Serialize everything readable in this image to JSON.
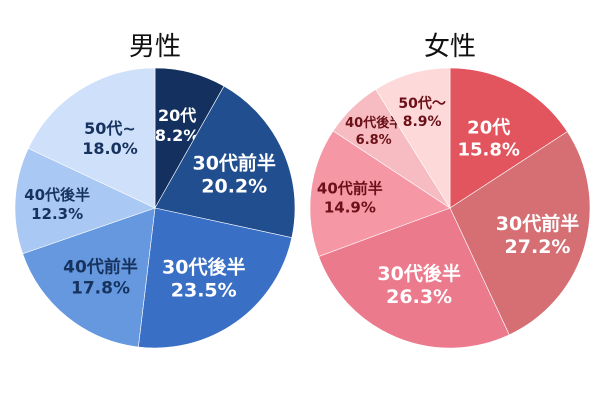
{
  "chart_data": [
    {
      "type": "pie",
      "title": "男性",
      "categories": [
        "20代",
        "30代前半",
        "30代後半",
        "40代前半",
        "40代後半",
        "50代~"
      ],
      "values": [
        8.2,
        20.2,
        23.5,
        17.8,
        12.3,
        18.0
      ],
      "labels": [
        "8.2%",
        "20.2%",
        "23.5%",
        "17.8%",
        "12.3%",
        "18.0%"
      ],
      "colors": [
        "#13305f",
        "#214e8f",
        "#3a6fc6",
        "#6598df",
        "#a9c8f4",
        "#cfe0fa"
      ],
      "label_colors": [
        "#ffffff",
        "#ffffff",
        "#ffffff",
        "#16325e",
        "#16325e",
        "#16325e"
      ],
      "start_angle": "12 o'clock, clockwise"
    },
    {
      "type": "pie",
      "title": "女性",
      "categories": [
        "20代",
        "30代前半",
        "30代後半",
        "40代前半",
        "40代後半",
        "50代～"
      ],
      "values": [
        15.8,
        27.2,
        26.3,
        14.9,
        6.8,
        8.9
      ],
      "labels": [
        "15.8%",
        "27.2%",
        "26.3%",
        "14.9%",
        "6.8%",
        "8.9%"
      ],
      "colors": [
        "#e2555e",
        "#d56f73",
        "#ec7a8d",
        "#f697a5",
        "#f7bcc1",
        "#fdd9da"
      ],
      "label_colors": [
        "#ffffff",
        "#ffffff",
        "#ffffff",
        "#6b1018",
        "#6b1018",
        "#6b1018"
      ],
      "start_angle": "12 o'clock, clockwise"
    }
  ],
  "titles": {
    "male": "男性",
    "female": "女性"
  }
}
